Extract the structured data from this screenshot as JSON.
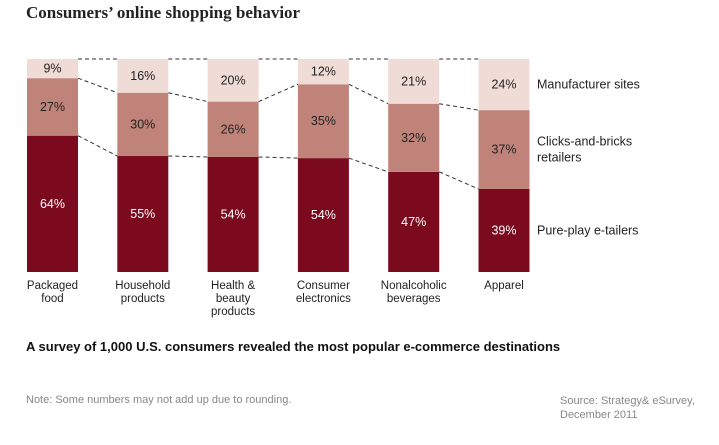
{
  "chart_data": {
    "type": "bar",
    "stacked": true,
    "title": "Consumers’ online shopping behavior",
    "subtitle": "A survey of 1,000 U.S. consumers revealed the most popular e-commerce destinations",
    "categories": [
      [
        "Packaged",
        "food"
      ],
      [
        "Household",
        "products"
      ],
      [
        "Health &",
        "beauty",
        "products"
      ],
      [
        "Consumer",
        "electronics"
      ],
      [
        "Nonalcoholic",
        "beverages"
      ],
      [
        "Apparel"
      ]
    ],
    "series": [
      {
        "name": "Pure-play e-tailers",
        "name_lines": [
          "Pure-play e-tailers"
        ],
        "values": [
          64,
          55,
          54,
          54,
          47,
          39
        ],
        "color": "#7b0a1e"
      },
      {
        "name": "Clicks-and-bricks retailers",
        "name_lines": [
          "Clicks-and-bricks",
          "retailers"
        ],
        "values": [
          27,
          30,
          26,
          35,
          32,
          37
        ],
        "color": "#c0837a"
      },
      {
        "name": "Manufacturer sites",
        "name_lines": [
          "Manufacturer sites"
        ],
        "values": [
          9,
          16,
          20,
          12,
          21,
          24
        ],
        "color": "#f0dcd7"
      }
    ],
    "unit": "%",
    "legend_position": "right",
    "grid": false
  },
  "note": "Note: Some numbers may not add up due to rounding.",
  "source": [
    "Source: Strategy& eSurvey,",
    "December 2011"
  ]
}
